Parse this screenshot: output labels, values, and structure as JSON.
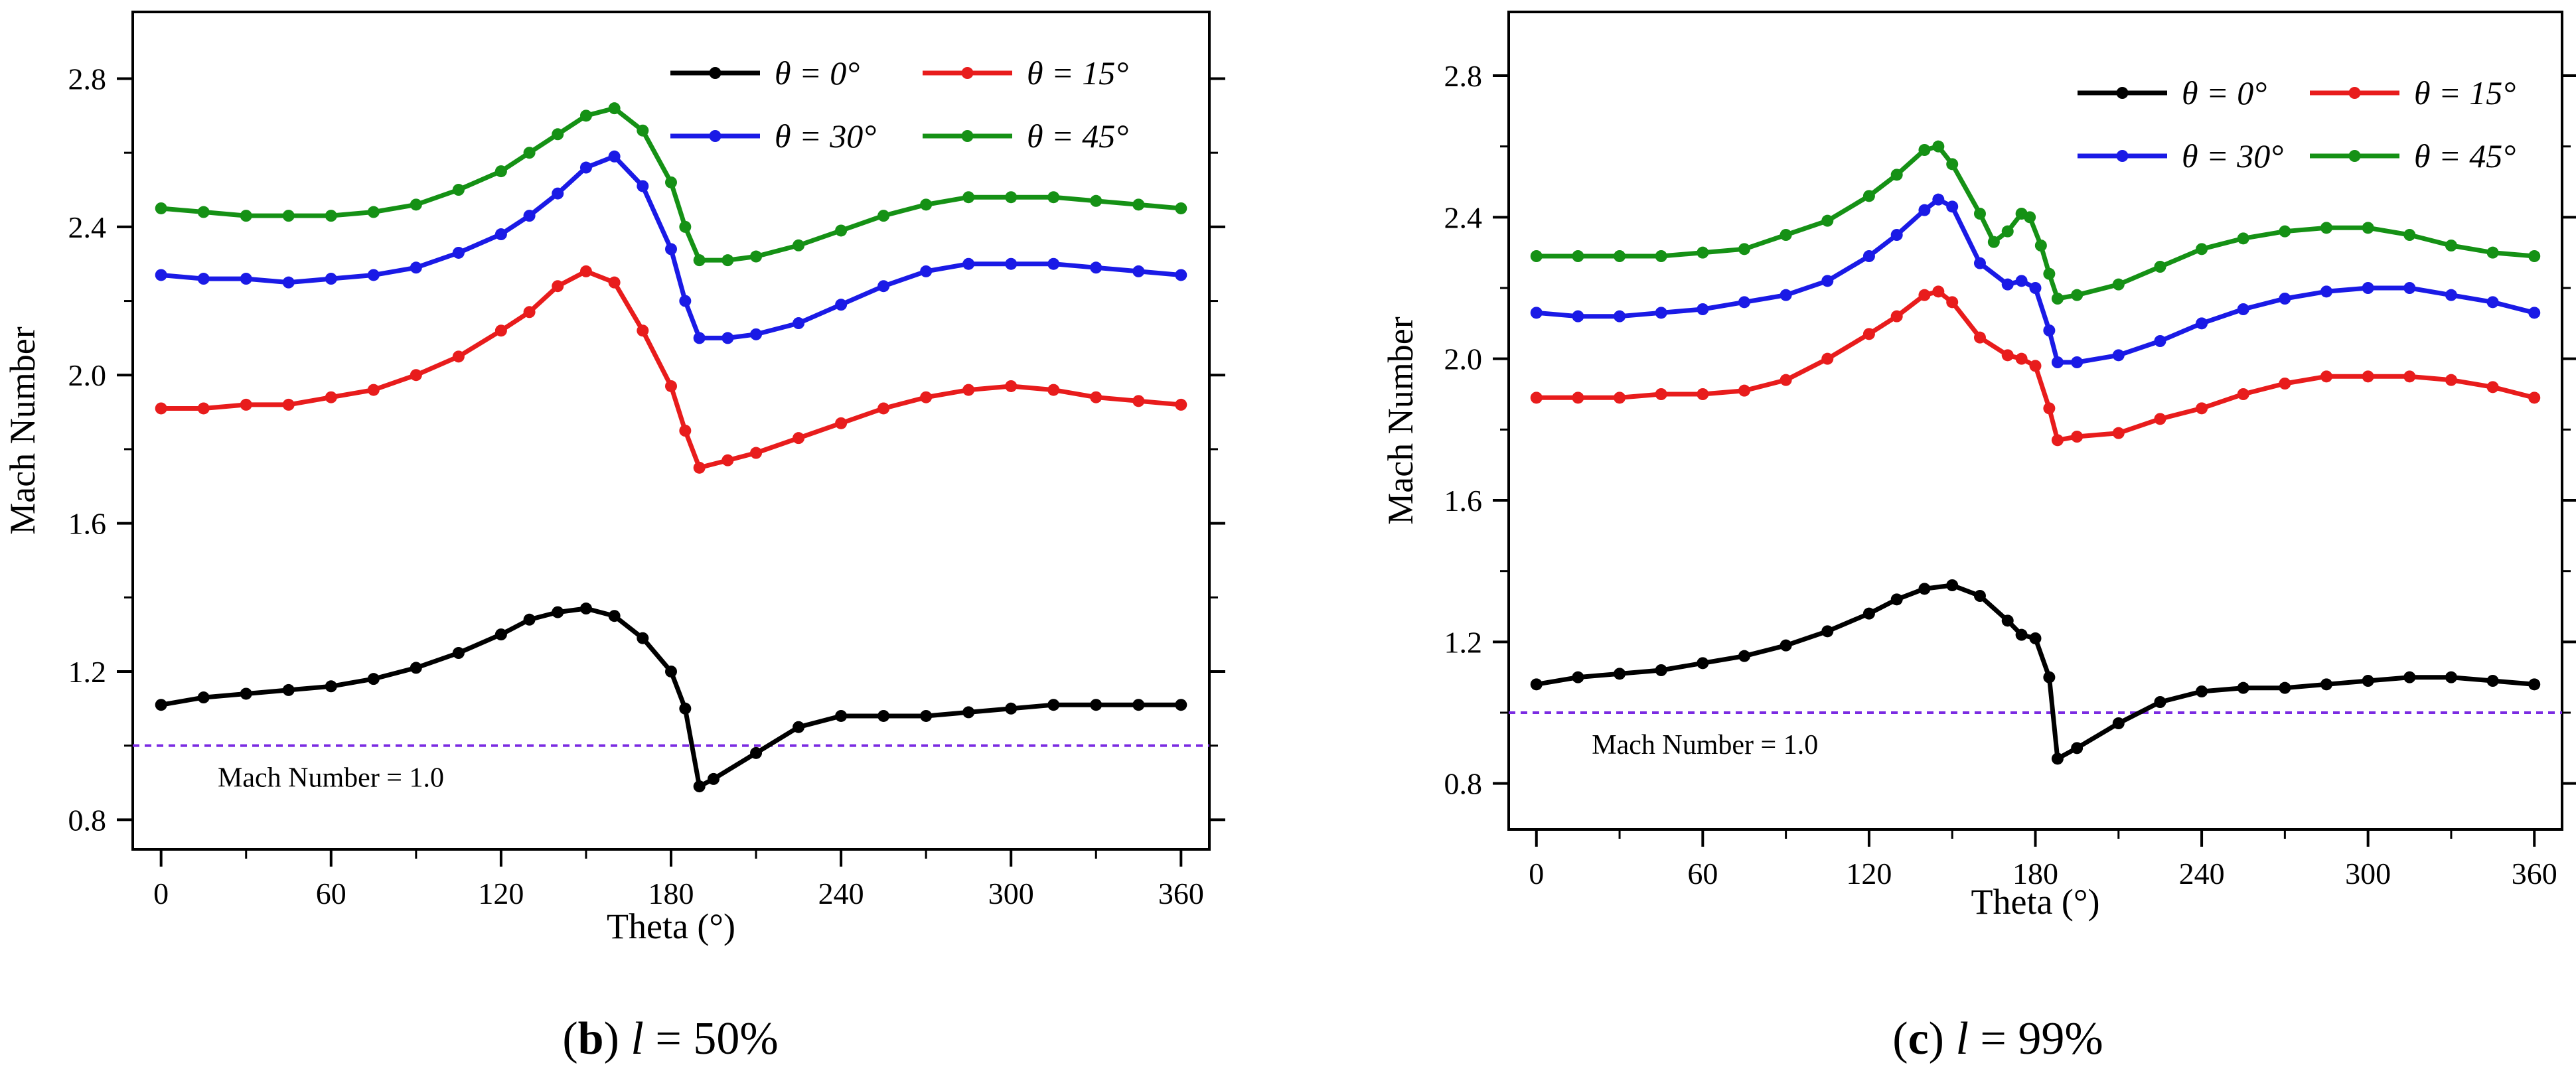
{
  "figure": {
    "caption_b": {
      "label": "b",
      "var": "l",
      "value": "= 50%"
    },
    "caption_c": {
      "label": "c",
      "var": "l",
      "value": "= 99%"
    }
  },
  "chart_data": [
    {
      "id": "b",
      "type": "line",
      "title": "(b) l = 50%",
      "xlabel": "Theta (°)",
      "ylabel": "Mach Number",
      "xlim": [
        -10,
        370
      ],
      "ylim": [
        0.72,
        2.98
      ],
      "xticks": [
        0,
        60,
        120,
        180,
        240,
        300,
        360
      ],
      "yticks": [
        0.8,
        1.2,
        1.6,
        2.0,
        2.4,
        2.8
      ],
      "reference_line": {
        "y": 1.0,
        "label": "Mach Number = 1.0",
        "color": "#7B2BE2"
      },
      "legend": [
        "θ = 0°",
        "θ = 15°",
        "θ = 30°",
        "θ = 45°"
      ],
      "series": [
        {
          "name": "θ = 0°",
          "color": "#000000",
          "x": [
            0,
            15,
            30,
            45,
            60,
            75,
            90,
            105,
            120,
            130,
            140,
            150,
            160,
            170,
            180,
            185,
            190,
            195,
            210,
            225,
            240,
            255,
            270,
            285,
            300,
            315,
            330,
            345,
            360
          ],
          "y": [
            1.11,
            1.13,
            1.14,
            1.15,
            1.16,
            1.18,
            1.21,
            1.25,
            1.3,
            1.34,
            1.36,
            1.37,
            1.35,
            1.29,
            1.2,
            1.1,
            0.89,
            0.91,
            0.98,
            1.05,
            1.08,
            1.08,
            1.08,
            1.09,
            1.1,
            1.11,
            1.11,
            1.11,
            1.11
          ]
        },
        {
          "name": "θ = 15°",
          "color": "#E81C1C",
          "x": [
            0,
            15,
            30,
            45,
            60,
            75,
            90,
            105,
            120,
            130,
            140,
            150,
            160,
            170,
            180,
            185,
            190,
            200,
            210,
            225,
            240,
            255,
            270,
            285,
            300,
            315,
            330,
            345,
            360
          ],
          "y": [
            1.91,
            1.91,
            1.92,
            1.92,
            1.94,
            1.96,
            2.0,
            2.05,
            2.12,
            2.17,
            2.24,
            2.28,
            2.25,
            2.12,
            1.97,
            1.85,
            1.75,
            1.77,
            1.79,
            1.83,
            1.87,
            1.91,
            1.94,
            1.96,
            1.97,
            1.96,
            1.94,
            1.93,
            1.92
          ]
        },
        {
          "name": "θ = 30°",
          "color": "#1A1AE6",
          "x": [
            0,
            15,
            30,
            45,
            60,
            75,
            90,
            105,
            120,
            130,
            140,
            150,
            160,
            170,
            180,
            185,
            190,
            200,
            210,
            225,
            240,
            255,
            270,
            285,
            300,
            315,
            330,
            345,
            360
          ],
          "y": [
            2.27,
            2.26,
            2.26,
            2.25,
            2.26,
            2.27,
            2.29,
            2.33,
            2.38,
            2.43,
            2.49,
            2.56,
            2.59,
            2.51,
            2.34,
            2.2,
            2.1,
            2.1,
            2.11,
            2.14,
            2.19,
            2.24,
            2.28,
            2.3,
            2.3,
            2.3,
            2.29,
            2.28,
            2.27
          ]
        },
        {
          "name": "θ = 45°",
          "color": "#159115",
          "x": [
            0,
            15,
            30,
            45,
            60,
            75,
            90,
            105,
            120,
            130,
            140,
            150,
            160,
            170,
            180,
            185,
            190,
            200,
            210,
            225,
            240,
            255,
            270,
            285,
            300,
            315,
            330,
            345,
            360
          ],
          "y": [
            2.45,
            2.44,
            2.43,
            2.43,
            2.43,
            2.44,
            2.46,
            2.5,
            2.55,
            2.6,
            2.65,
            2.7,
            2.72,
            2.66,
            2.52,
            2.4,
            2.31,
            2.31,
            2.32,
            2.35,
            2.39,
            2.43,
            2.46,
            2.48,
            2.48,
            2.48,
            2.47,
            2.46,
            2.45
          ]
        }
      ]
    },
    {
      "id": "c",
      "type": "line",
      "title": "(c) l = 99%",
      "xlabel": "Theta (°)",
      "ylabel": "Mach Number",
      "xlim": [
        -10,
        370
      ],
      "ylim": [
        0.67,
        2.98
      ],
      "xticks": [
        0,
        60,
        120,
        180,
        240,
        300,
        360
      ],
      "yticks": [
        0.8,
        1.2,
        1.6,
        2.0,
        2.4,
        2.8
      ],
      "reference_line": {
        "y": 1.0,
        "label": "Mach Number = 1.0",
        "color": "#7B2BE2"
      },
      "legend": [
        "θ =  0°",
        "θ = 15°",
        "θ = 30°",
        "θ = 45°"
      ],
      "series": [
        {
          "name": "θ = 0°",
          "color": "#000000",
          "x": [
            0,
            15,
            30,
            45,
            60,
            75,
            90,
            105,
            120,
            130,
            140,
            150,
            160,
            170,
            175,
            180,
            185,
            188,
            195,
            210,
            225,
            240,
            255,
            270,
            285,
            300,
            315,
            330,
            345,
            360
          ],
          "y": [
            1.08,
            1.1,
            1.11,
            1.12,
            1.14,
            1.16,
            1.19,
            1.23,
            1.28,
            1.32,
            1.35,
            1.36,
            1.33,
            1.26,
            1.22,
            1.21,
            1.1,
            0.87,
            0.9,
            0.97,
            1.03,
            1.06,
            1.07,
            1.07,
            1.08,
            1.09,
            1.1,
            1.1,
            1.09,
            1.08
          ]
        },
        {
          "name": "θ = 15°",
          "color": "#E81C1C",
          "x": [
            0,
            15,
            30,
            45,
            60,
            75,
            90,
            105,
            120,
            130,
            140,
            145,
            150,
            160,
            170,
            175,
            180,
            185,
            188,
            195,
            210,
            225,
            240,
            255,
            270,
            285,
            300,
            315,
            330,
            345,
            360
          ],
          "y": [
            1.89,
            1.89,
            1.89,
            1.9,
            1.9,
            1.91,
            1.94,
            2.0,
            2.07,
            2.12,
            2.18,
            2.19,
            2.16,
            2.06,
            2.01,
            2.0,
            1.98,
            1.86,
            1.77,
            1.78,
            1.79,
            1.83,
            1.86,
            1.9,
            1.93,
            1.95,
            1.95,
            1.95,
            1.94,
            1.92,
            1.89
          ]
        },
        {
          "name": "θ = 30°",
          "color": "#1A1AE6",
          "x": [
            0,
            15,
            30,
            45,
            60,
            75,
            90,
            105,
            120,
            130,
            140,
            145,
            150,
            160,
            170,
            175,
            180,
            185,
            188,
            195,
            210,
            225,
            240,
            255,
            270,
            285,
            300,
            315,
            330,
            345,
            360
          ],
          "y": [
            2.13,
            2.12,
            2.12,
            2.13,
            2.14,
            2.16,
            2.18,
            2.22,
            2.29,
            2.35,
            2.42,
            2.45,
            2.43,
            2.27,
            2.21,
            2.22,
            2.2,
            2.08,
            1.99,
            1.99,
            2.01,
            2.05,
            2.1,
            2.14,
            2.17,
            2.19,
            2.2,
            2.2,
            2.18,
            2.16,
            2.13
          ]
        },
        {
          "name": "θ = 45°",
          "color": "#159115",
          "x": [
            0,
            15,
            30,
            45,
            60,
            75,
            90,
            105,
            120,
            130,
            140,
            145,
            150,
            160,
            165,
            170,
            175,
            178,
            182,
            185,
            188,
            195,
            210,
            225,
            240,
            255,
            270,
            285,
            300,
            315,
            330,
            345,
            360
          ],
          "y": [
            2.29,
            2.29,
            2.29,
            2.29,
            2.3,
            2.31,
            2.35,
            2.39,
            2.46,
            2.52,
            2.59,
            2.6,
            2.55,
            2.41,
            2.33,
            2.36,
            2.41,
            2.4,
            2.32,
            2.24,
            2.17,
            2.18,
            2.21,
            2.26,
            2.31,
            2.34,
            2.36,
            2.37,
            2.37,
            2.35,
            2.32,
            2.3,
            2.29
          ]
        }
      ]
    }
  ]
}
